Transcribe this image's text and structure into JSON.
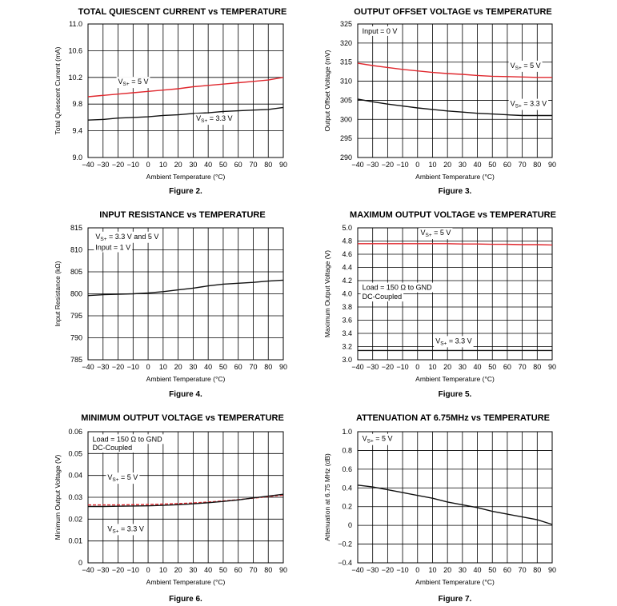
{
  "colors": {
    "red": "#e0282e",
    "black": "#111111",
    "grid": "#000000"
  },
  "chart_data": [
    {
      "type": "line",
      "title": "TOTAL QUIESCENT CURRENT vs TEMPERATURE",
      "figure_label": "Figure 2.",
      "xlabel": "Ambient Temperature (°C)",
      "ylabel": "Total Quiescent Current (mA)",
      "xlim": [
        -40,
        90
      ],
      "ylim": [
        9.0,
        11.0
      ],
      "xticks": [
        "−40",
        "−30",
        "−20",
        "−10",
        "0",
        "10",
        "20",
        "30",
        "40",
        "50",
        "60",
        "70",
        "80",
        "90"
      ],
      "yticks": [
        "9.0",
        "9.4",
        "9.8",
        "10.2",
        "10.6",
        "11.0"
      ],
      "x": [
        -40,
        -30,
        -20,
        -10,
        0,
        10,
        20,
        30,
        40,
        50,
        60,
        70,
        80,
        90
      ],
      "series": [
        {
          "name": "VS+ = 5 V",
          "color": "red",
          "values": [
            9.91,
            9.93,
            9.95,
            9.97,
            9.99,
            10.01,
            10.03,
            10.06,
            10.08,
            10.1,
            10.12,
            10.14,
            10.16,
            10.2
          ]
        },
        {
          "name": "VS+ = 3.3 V",
          "color": "black",
          "values": [
            9.56,
            9.57,
            9.59,
            9.6,
            9.61,
            9.63,
            9.64,
            9.66,
            9.67,
            9.69,
            9.7,
            9.71,
            9.72,
            9.75
          ]
        }
      ],
      "annotations": [
        {
          "text": "V",
          "sub": "S+",
          "rest": " = 5 V",
          "x": -20,
          "y": 10.1
        },
        {
          "text": "V",
          "sub": "S+",
          "rest": " = 3.3 V",
          "x": 32,
          "y": 9.55
        }
      ]
    },
    {
      "type": "line",
      "title": "OUTPUT OFFSET VOLTAGE vs TEMPERATURE",
      "figure_label": "Figure 3.",
      "xlabel": "Ambient Temperature (°C)",
      "ylabel": "Output Offset Voltage (mV)",
      "xlim": [
        -40,
        90
      ],
      "ylim": [
        290,
        325
      ],
      "xticks": [
        "−40",
        "−30",
        "−20",
        "−10",
        "0",
        "10",
        "20",
        "30",
        "40",
        "50",
        "60",
        "70",
        "80",
        "90"
      ],
      "yticks": [
        "290",
        "295",
        "300",
        "305",
        "310",
        "315",
        "320",
        "325"
      ],
      "x": [
        -40,
        -30,
        -20,
        -10,
        0,
        10,
        20,
        30,
        40,
        50,
        60,
        70,
        80,
        90
      ],
      "series": [
        {
          "name": "VS+ = 5 V",
          "color": "red",
          "values": [
            314.7,
            314.1,
            313.6,
            313.1,
            312.7,
            312.3,
            312.0,
            311.8,
            311.5,
            311.3,
            311.2,
            311.1,
            311.0,
            311.0
          ]
        },
        {
          "name": "VS+ = 3.3 V",
          "color": "black",
          "values": [
            305.3,
            304.6,
            304.0,
            303.5,
            303.0,
            302.6,
            302.2,
            301.9,
            301.6,
            301.4,
            301.2,
            301.0,
            301.0,
            301.0
          ]
        }
      ],
      "annotations": [
        {
          "text": "Input = 0 V",
          "x": -37,
          "y": 322.5
        },
        {
          "text": "V",
          "sub": "S+",
          "rest": " = 5 V",
          "x": 62,
          "y": 313.5
        },
        {
          "text": "V",
          "sub": "S+",
          "rest": " = 3.3 V",
          "x": 62,
          "y": 303.5
        }
      ]
    },
    {
      "type": "line",
      "title": "INPUT RESISTANCE vs TEMPERATURE",
      "figure_label": "Figure 4.",
      "xlabel": "Ambient Temperature (°C)",
      "ylabel": "Input Resistance (kΩ)",
      "xlim": [
        -40,
        90
      ],
      "ylim": [
        785,
        815
      ],
      "xticks": [
        "−40",
        "−30",
        "−20",
        "−10",
        "0",
        "10",
        "20",
        "30",
        "40",
        "50",
        "60",
        "70",
        "80",
        "90"
      ],
      "yticks": [
        "785",
        "790",
        "795",
        "800",
        "805",
        "810",
        "815"
      ],
      "x": [
        -40,
        -30,
        -20,
        -10,
        0,
        10,
        20,
        30,
        40,
        50,
        60,
        70,
        80,
        90
      ],
      "series": [
        {
          "name": "VS+ = 3.3 V and 5 V",
          "color": "black",
          "values": [
            799.6,
            799.8,
            799.9,
            800.0,
            800.2,
            800.5,
            800.9,
            801.3,
            801.8,
            802.2,
            802.4,
            802.6,
            802.9,
            803.1
          ]
        }
      ],
      "annotations": [
        {
          "text": "V",
          "sub": "S+",
          "rest": " = 3.3 V and 5 V",
          "x": -35,
          "y": 812.5
        },
        {
          "text": "Input = 1 V",
          "x": -35,
          "y": 810.0
        }
      ]
    },
    {
      "type": "line",
      "title": "MAXIMUM OUTPUT VOLTAGE vs TEMPERATURE",
      "figure_label": "Figure 5.",
      "xlabel": "Ambient Temperature (°C)",
      "ylabel": "Maximum Output Voltage (V)",
      "xlim": [
        -40,
        90
      ],
      "ylim": [
        3.0,
        5.0
      ],
      "xticks": [
        "−40",
        "−30",
        "−20",
        "−10",
        "0",
        "10",
        "20",
        "30",
        "40",
        "50",
        "60",
        "70",
        "80",
        "90"
      ],
      "yticks": [
        "3.0",
        "3.2",
        "3.4",
        "3.6",
        "3.8",
        "4.0",
        "4.2",
        "4.4",
        "4.6",
        "4.8",
        "5.0"
      ],
      "x": [
        -40,
        -30,
        -20,
        -10,
        0,
        10,
        20,
        30,
        40,
        50,
        60,
        70,
        80,
        90
      ],
      "series": [
        {
          "name": "VS+ = 5 V",
          "color": "red",
          "values": [
            4.76,
            4.76,
            4.76,
            4.76,
            4.76,
            4.76,
            4.76,
            4.755,
            4.755,
            4.75,
            4.75,
            4.745,
            4.745,
            4.74
          ]
        },
        {
          "name": "VS+ = 3.3 V",
          "color": "black",
          "values": [
            3.14,
            3.14,
            3.14,
            3.14,
            3.14,
            3.14,
            3.14,
            3.14,
            3.14,
            3.14,
            3.14,
            3.14,
            3.14,
            3.14
          ]
        }
      ],
      "annotations": [
        {
          "text": "V",
          "sub": "S+",
          "rest": " = 5 V",
          "x": 2,
          "y": 4.89
        },
        {
          "text": "Load = 150 Ω to GND",
          "x": -37,
          "y": 4.06
        },
        {
          "text": "DC-Coupled",
          "x": -37,
          "y": 3.92
        },
        {
          "text": "V",
          "sub": "S+",
          "rest": " = 3.3 V",
          "x": 12,
          "y": 3.25
        }
      ]
    },
    {
      "type": "line",
      "title": "MINIMUM OUTPUT VOLTAGE vs TEMPERATURE",
      "figure_label": "Figure 6.",
      "xlabel": "Ambient Temperature (°C)",
      "ylabel": "Minimum Output Voltage (V)",
      "xlim": [
        -40,
        90
      ],
      "ylim": [
        0,
        0.06
      ],
      "xticks": [
        "−40",
        "−30",
        "−20",
        "−10",
        "0",
        "10",
        "20",
        "30",
        "40",
        "50",
        "60",
        "70",
        "80",
        "90"
      ],
      "yticks": [
        "0",
        "0.01",
        "0.02",
        "0.03",
        "0.04",
        "0.05",
        "0.06"
      ],
      "x": [
        -40,
        -30,
        -20,
        -10,
        0,
        10,
        20,
        30,
        40,
        50,
        60,
        70,
        80,
        90
      ],
      "series": [
        {
          "name": "VS+ = 5 V",
          "color": "red",
          "dashed": true,
          "values": [
            0.0265,
            0.0265,
            0.0265,
            0.0266,
            0.0267,
            0.0269,
            0.0271,
            0.0274,
            0.0278,
            0.0283,
            0.0289,
            0.0296,
            0.0303,
            0.031
          ]
        },
        {
          "name": "VS+ = 3.3 V",
          "color": "black",
          "values": [
            0.0258,
            0.0258,
            0.0259,
            0.026,
            0.0261,
            0.0263,
            0.0266,
            0.027,
            0.0275,
            0.0281,
            0.0288,
            0.0297,
            0.0305,
            0.0314
          ]
        }
      ],
      "annotations": [
        {
          "text": "Load = 150 Ω to GND",
          "x": -37,
          "y": 0.0555
        },
        {
          "text": "DC-Coupled",
          "x": -37,
          "y": 0.0515
        },
        {
          "text": "V",
          "sub": "S+",
          "rest": " = 5 V",
          "x": -27,
          "y": 0.038
        },
        {
          "text": "V",
          "sub": "S+",
          "rest": " = 3.3 V",
          "x": -27,
          "y": 0.0145
        }
      ]
    },
    {
      "type": "line",
      "title": "ATTENUATION AT 6.75MHz vs TEMPERATURE",
      "figure_label": "Figure 7.",
      "xlabel": "Ambient Temperature (°C)",
      "ylabel": "Attenuation at 6.75 MHz (dB)",
      "xlim": [
        -40,
        90
      ],
      "ylim": [
        -0.4,
        1.0
      ],
      "xticks": [
        "−40",
        "−30",
        "−20",
        "−10",
        "0",
        "10",
        "20",
        "30",
        "40",
        "50",
        "60",
        "70",
        "80",
        "90"
      ],
      "yticks": [
        "−0.4",
        "−0.2",
        "0",
        "0.2",
        "0.4",
        "0.6",
        "0.8",
        "1.0"
      ],
      "x": [
        -40,
        -30,
        -20,
        -10,
        0,
        10,
        20,
        30,
        40,
        50,
        60,
        70,
        80,
        90
      ],
      "series": [
        {
          "name": "VS+ = 5 V",
          "color": "black",
          "values": [
            0.43,
            0.41,
            0.38,
            0.35,
            0.32,
            0.29,
            0.25,
            0.22,
            0.19,
            0.15,
            0.12,
            0.09,
            0.06,
            0.01
          ]
        }
      ],
      "annotations": [
        {
          "text": "V",
          "sub": "S+",
          "rest": " = 5 V",
          "x": -37,
          "y": 0.9
        }
      ]
    }
  ]
}
